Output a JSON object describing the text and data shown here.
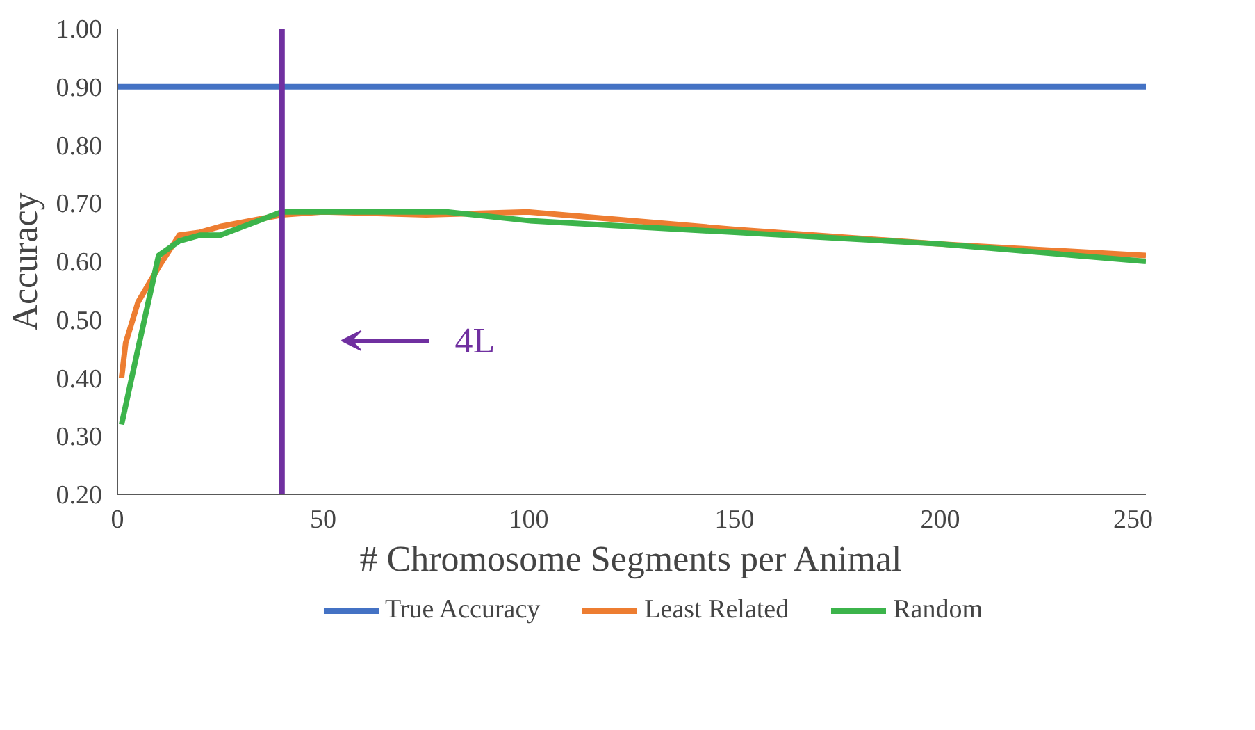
{
  "chart_data": {
    "type": "line",
    "xlabel": "# Chromosome Segments per Animal",
    "ylabel": "Accuracy",
    "xlim": [
      0,
      250
    ],
    "xticks": [
      0,
      50,
      100,
      150,
      200,
      250
    ],
    "ylim": [
      0.2,
      1.0
    ],
    "yticks": [
      {
        "value": 0.2,
        "label": "0.20"
      },
      {
        "value": 0.3,
        "label": "0.30"
      },
      {
        "value": 0.4,
        "label": "0.40"
      },
      {
        "value": 0.5,
        "label": "0.50"
      },
      {
        "value": 0.6,
        "label": "0.60"
      },
      {
        "value": 0.7,
        "label": "0.70"
      },
      {
        "value": 0.8,
        "label": "0.80"
      },
      {
        "value": 0.9,
        "label": "0.90"
      },
      {
        "value": 1.0,
        "label": "1.00"
      }
    ],
    "series": [
      {
        "name": "True Accuracy",
        "color": "#4472c4",
        "x": [
          0,
          250
        ],
        "values": [
          0.9,
          0.9
        ]
      },
      {
        "name": "Least Related",
        "color": "#ed7d31",
        "x": [
          1,
          2,
          5,
          10,
          15,
          20,
          25,
          40,
          50,
          75,
          100,
          150,
          200,
          250
        ],
        "values": [
          0.4,
          0.46,
          0.53,
          0.59,
          0.645,
          0.65,
          0.66,
          0.68,
          0.685,
          0.68,
          0.685,
          0.655,
          0.63,
          0.61
        ]
      },
      {
        "name": "Random",
        "color": "#3cb44b",
        "x": [
          1,
          5,
          10,
          15,
          20,
          25,
          40,
          50,
          80,
          100,
          150,
          200,
          250
        ],
        "values": [
          0.32,
          0.45,
          0.61,
          0.635,
          0.645,
          0.645,
          0.685,
          0.685,
          0.685,
          0.67,
          0.65,
          0.63,
          0.6
        ]
      }
    ],
    "ref_lines": [
      {
        "axis": "x",
        "value": 40,
        "color": "#7030a0"
      }
    ],
    "annotations": [
      "4L"
    ],
    "legend": "bottom",
    "grid": false,
    "marker": "none",
    "line_style": "solid"
  }
}
